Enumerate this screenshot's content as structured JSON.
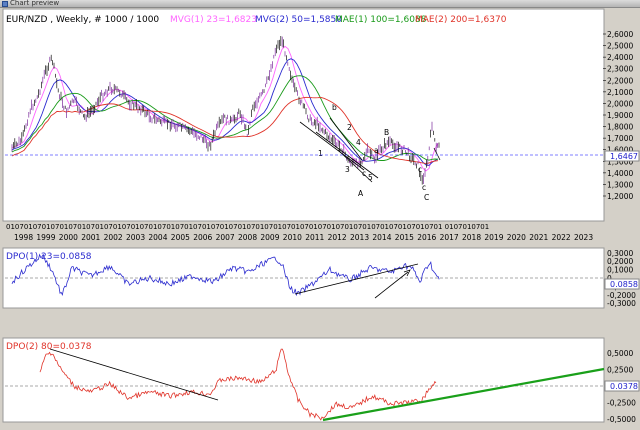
{
  "window": {
    "title": "Chart preview"
  },
  "main": {
    "title": "EUR/NZD , Weekly, # 1000 / 1000",
    "legend": [
      {
        "text": "MVG(1) 23=1,6823",
        "color": "#ff66ff"
      },
      {
        "text": "MVG(2) 50=1,5850",
        "color": "#2b2bcf"
      },
      {
        "text": "MAE(1) 100=1,6088",
        "color": "#1a9a1a"
      },
      {
        "text": "MAE(2) 200=1,6370",
        "color": "#e0342a"
      }
    ],
    "yticks": [
      "2,6000",
      "2,5000",
      "2,4000",
      "2,3000",
      "2,2000",
      "2,1000",
      "2,0000",
      "1,9000",
      "1,8000",
      "1,7000",
      "1,6000",
      "1,5000",
      "1,4000",
      "1,3000",
      "1,2000"
    ],
    "last_value": "1,6467",
    "wave_labels": [
      "b",
      "2",
      "4",
      "a",
      "c",
      "3",
      "5",
      "1",
      "A",
      "B",
      "C",
      "c",
      "c"
    ]
  },
  "xaxis": {
    "month_row": "01070107010701070107010701070107010701070107010701070107010701070107010701070107010701070107010701  0107010701",
    "years": [
      "1998",
      "1999",
      "2000",
      "2001",
      "2002",
      "2003",
      "2004",
      "2005",
      "2006",
      "2007",
      "2008",
      "2009",
      "2010",
      "2011",
      "2012",
      "2013",
      "2014",
      "2015",
      "2016",
      "2017",
      "2018",
      "2019",
      "2020",
      "2021",
      "2022",
      "2023"
    ]
  },
  "dpo1": {
    "title": "DPO(1) 23=0.0858",
    "color": "#2b2bcf",
    "yticks": [
      "0,3000",
      "0,2000",
      "0,1000",
      "0",
      "-0,1000",
      "-0,2000",
      "-0,3000"
    ],
    "last_value": "0.0858"
  },
  "dpo2": {
    "title": "DPO(2) 80=0.0378",
    "color": "#e0342a",
    "yticks": [
      "0,5000",
      "0,2500",
      "-0,2500",
      "-0,5000"
    ],
    "last_value": "0.0378"
  },
  "colors": {
    "background": "#ffffff",
    "frame": "#d4d0c8",
    "bars": "#111111",
    "trend": "#1aa01a"
  }
}
